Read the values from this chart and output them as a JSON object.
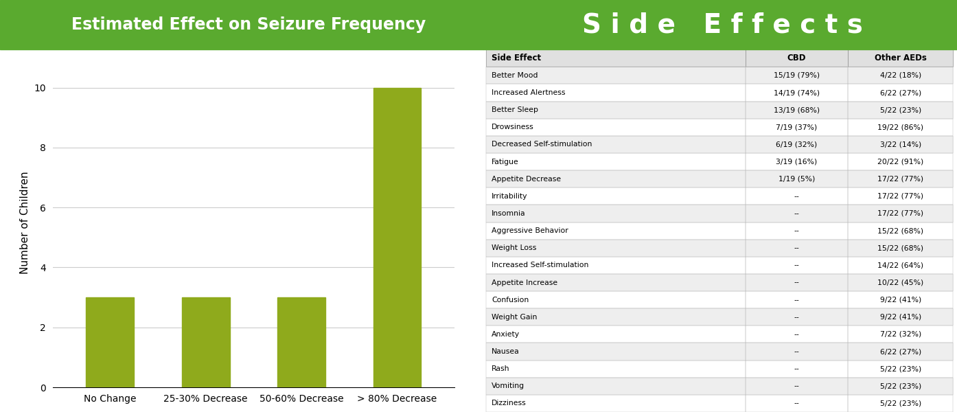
{
  "chart_title": "Estimated Effect on Seizure Frequency",
  "table_title": "Side  Effects",
  "bar_categories": [
    "No Change",
    "25-30% Decrease",
    "50-60% Decrease",
    "> 80% Decrease"
  ],
  "bar_values": [
    3,
    3,
    3,
    10
  ],
  "bar_color": "#8faa1c",
  "ylabel": "Number of Children",
  "yticks": [
    0,
    2,
    4,
    6,
    8,
    10
  ],
  "ylim": [
    0,
    11
  ],
  "header_bg": "#5aaa2f",
  "header_text_color": "#ffffff",
  "title_fontsize": 17,
  "table_title_fontsize": 28,
  "table_headers": [
    "Side Effect",
    "CBD",
    "Other AEDs"
  ],
  "table_rows": [
    [
      "Better Mood",
      "15/19 (79%)",
      "4/22 (18%)"
    ],
    [
      "Increased Alertness",
      "14/19 (74%)",
      "6/22 (27%)"
    ],
    [
      "Better Sleep",
      "13/19 (68%)",
      "5/22 (23%)"
    ],
    [
      "Drowsiness",
      "7/19 (37%)",
      "19/22 (86%)"
    ],
    [
      "Decreased Self-stimulation",
      "6/19 (32%)",
      "3/22 (14%)"
    ],
    [
      "Fatigue",
      "3/19 (16%)",
      "20/22 (91%)"
    ],
    [
      "Appetite Decrease",
      "1/19 (5%)",
      "17/22 (77%)"
    ],
    [
      "Irritability",
      "--",
      "17/22 (77%)"
    ],
    [
      "Insomnia",
      "--",
      "17/22 (77%)"
    ],
    [
      "Aggressive Behavior",
      "--",
      "15/22 (68%)"
    ],
    [
      "Weight Loss",
      "--",
      "15/22 (68%)"
    ],
    [
      "Increased Self-stimulation",
      "--",
      "14/22 (64%)"
    ],
    [
      "Appetite Increase",
      "--",
      "10/22 (45%)"
    ],
    [
      "Confusion",
      "--",
      "9/22 (41%)"
    ],
    [
      "Weight Gain",
      "--",
      "9/22 (41%)"
    ],
    [
      "Anxiety",
      "--",
      "7/22 (32%)"
    ],
    [
      "Nausea",
      "--",
      "6/22 (27%)"
    ],
    [
      "Rash",
      "--",
      "5/22 (23%)"
    ],
    [
      "Vomiting",
      "--",
      "5/22 (23%)"
    ],
    [
      "Dizziness",
      "--",
      "5/22 (23%)"
    ]
  ],
  "row_colors": [
    "#eeeeee",
    "#ffffff"
  ],
  "bg_color": "#ffffff",
  "grid_color": "#cccccc",
  "axis_label_fontsize": 11,
  "tick_fontsize": 10
}
